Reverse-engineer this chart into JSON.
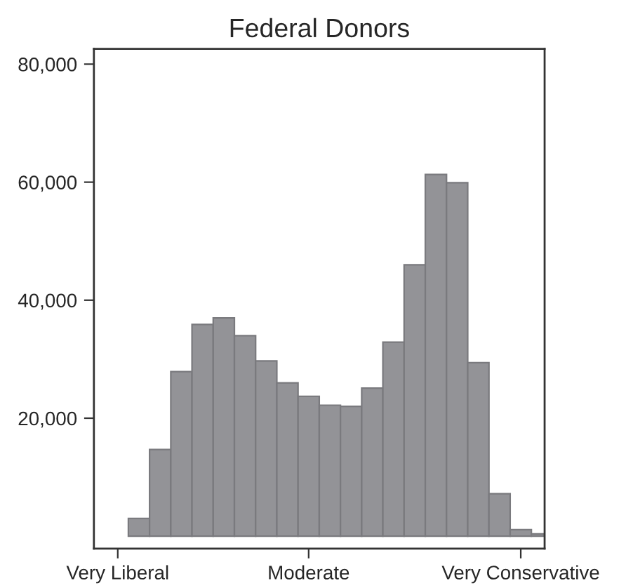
{
  "chart_data": {
    "type": "bar",
    "title": "Federal Donors",
    "categories": [
      "Very Liberal",
      null,
      null,
      null,
      null,
      null,
      null,
      null,
      null,
      "Moderate",
      null,
      null,
      null,
      null,
      null,
      null,
      null,
      null,
      null,
      "Very Conservative",
      null
    ],
    "values": [
      null,
      3000,
      14700,
      27900,
      35900,
      37000,
      34000,
      29700,
      26000,
      23700,
      22200,
      22000,
      25100,
      32900,
      46000,
      61300,
      59900,
      29400,
      7200,
      1100,
      400
    ],
    "color": "#939397",
    "ylim": [
      -2100,
      82600
    ],
    "yticks": [
      {
        "value": 20000,
        "label": "20,000"
      },
      {
        "value": 40000,
        "label": "40,000"
      },
      {
        "value": 60000,
        "label": "60,000"
      },
      {
        "value": 80000,
        "label": "80,000"
      }
    ],
    "grid": false
  }
}
